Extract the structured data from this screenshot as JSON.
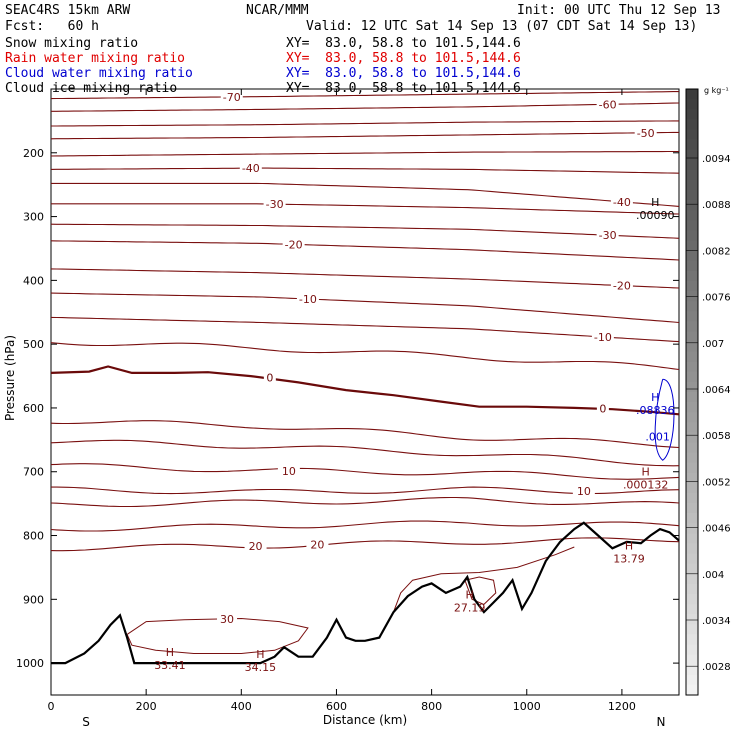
{
  "header": {
    "model": "SEAC4RS 15km ARW",
    "org": "NCAR/MMM",
    "init": "Init: 00 UTC Thu 12 Sep 13",
    "fcst": "Fcst:   60 h",
    "valid": "Valid: 12 UTC Sat 14 Sep 13 (07 CDT Sat 14 Sep 13)"
  },
  "fields": [
    {
      "label": "Snow mixing ratio",
      "xy": "XY=  83.0, 58.8 to 101.5,144.6",
      "color": "#000000"
    },
    {
      "label": "Rain water mixing ratio",
      "xy": "XY=  83.0, 58.8 to 101.5,144.6",
      "color": "#e00000"
    },
    {
      "label": "Cloud water mixing ratio",
      "xy": "XY=  83.0, 58.8 to 101.5,144.6",
      "color": "#0000d0"
    },
    {
      "label": "Cloud ice mixing ratio",
      "xy": "XY=  83.0, 58.8 to 101.5,144.6",
      "color": "#000000"
    }
  ],
  "chart_data": {
    "type": "cross-section",
    "xlabel": "Distance (km)",
    "ylabel": "Pressure (hPa)",
    "xlim": [
      0,
      1320
    ],
    "ylim": [
      1050,
      100
    ],
    "x_ticks": [
      0,
      200,
      400,
      600,
      800,
      1000,
      1200
    ],
    "y_ticks": [
      100,
      200,
      300,
      400,
      500,
      600,
      700,
      800,
      900,
      1000
    ],
    "y_tick_labels": [
      "",
      "200",
      "300",
      "400",
      "500",
      "600",
      "700",
      "800",
      "900",
      "1000"
    ],
    "endpoint_left": "S",
    "endpoint_right": "N",
    "colorbar": {
      "unit": "g kg⁻¹",
      "labels": [
        ".0094",
        ".0088",
        ".0082",
        ".0076",
        ".007",
        ".0064",
        ".0058",
        ".0052",
        ".0046",
        ".004",
        ".0034",
        ".0028"
      ],
      "top_color": "#3c3c3c",
      "bottom_color": "#f2f2f2"
    },
    "temperature_contours": {
      "color": "#7a1010",
      "lines": [
        {
          "p": [
            115,
            112,
            108,
            104
          ],
          "labels": [
            {
              "x": 380,
              "text": "-70"
            }
          ]
        },
        {
          "p": [
            135,
            132,
            128,
            122
          ],
          "labels": [
            {
              "x": 1170,
              "text": "-60"
            }
          ]
        },
        {
          "p": [
            158,
            156,
            152,
            150
          ],
          "labels": []
        },
        {
          "p": [
            178,
            176,
            172,
            168
          ],
          "labels": [
            {
              "x": 1250,
              "text": "-50"
            }
          ]
        },
        {
          "p": [
            205,
            202,
            199,
            198
          ],
          "labels": []
        },
        {
          "p": [
            226,
            224,
            226,
            232
          ],
          "labels": [
            {
              "x": 420,
              "text": "-40"
            }
          ]
        },
        {
          "p": [
            248,
            248,
            258,
            284
          ],
          "labels": [
            {
              "x": 1200,
              "text": "-40"
            }
          ]
        },
        {
          "p": [
            280,
            280,
            286,
            296
          ],
          "labels": [
            {
              "x": 470,
              "text": "-30"
            }
          ]
        },
        {
          "p": [
            312,
            314,
            320,
            334
          ],
          "labels": [
            {
              "x": 1170,
              "text": "-30"
            }
          ]
        },
        {
          "p": [
            338,
            342,
            352,
            368
          ],
          "labels": [
            {
              "x": 510,
              "text": "-20"
            }
          ]
        },
        {
          "p": [
            382,
            388,
            398,
            412
          ],
          "labels": [
            {
              "x": 1200,
              "text": "-20"
            }
          ]
        },
        {
          "p": [
            420,
            426,
            440,
            466
          ],
          "labels": [
            {
              "x": 540,
              "text": "-10"
            }
          ]
        },
        {
          "p": [
            458,
            466,
            476,
            496
          ],
          "labels": [
            {
              "x": 1160,
              "text": "-10"
            }
          ]
        },
        {
          "p": [
            496,
            506,
            520,
            538
          ],
          "labels": []
        },
        {
          "p": [
            620,
            628,
            646,
            658
          ],
          "labels": []
        },
        {
          "p": [
            652,
            660,
            672,
            688
          ],
          "labels": []
        },
        {
          "p": [
            690,
            698,
            702,
            710
          ],
          "labels": [
            {
              "x": 500,
              "text": "10"
            }
          ]
        },
        {
          "p": [
            728,
            732,
            728,
            732
          ],
          "labels": [
            {
              "x": 1120,
              "text": "10"
            }
          ]
        },
        {
          "p": [
            752,
            748,
            744,
            752
          ],
          "labels": []
        },
        {
          "p": [
            790,
            785,
            780,
            784
          ],
          "labels": []
        },
        {
          "p": [
            820,
            816,
            810,
            806
          ],
          "labels": [
            {
              "x": 430,
              "text": "20"
            },
            {
              "x": 560,
              "text": "20"
            }
          ]
        }
      ],
      "freezing_line": {
        "label": "0",
        "label_x_1": 460,
        "label_x_2": 1160
      }
    },
    "terrain": {
      "x": [
        0,
        30,
        70,
        100,
        125,
        145,
        160,
        175,
        200,
        240,
        300,
        360,
        400,
        440,
        470,
        490,
        520,
        550,
        580,
        600,
        620,
        640,
        660,
        690,
        720,
        750,
        780,
        800,
        830,
        860,
        875,
        890,
        910,
        930,
        950,
        970,
        990,
        1010,
        1040,
        1070,
        1100,
        1120,
        1150,
        1180,
        1210,
        1240,
        1260,
        1280,
        1300,
        1320
      ],
      "p": [
        1000,
        1000,
        985,
        965,
        940,
        925,
        960,
        1000,
        1000,
        1000,
        1000,
        1000,
        1000,
        1000,
        990,
        975,
        990,
        990,
        960,
        932,
        960,
        965,
        965,
        960,
        920,
        895,
        880,
        875,
        890,
        880,
        865,
        900,
        920,
        905,
        890,
        870,
        915,
        890,
        840,
        810,
        790,
        780,
        800,
        820,
        810,
        812,
        800,
        790,
        795,
        808
      ]
    },
    "rain_contours": {
      "color": "#7a1010",
      "label": "30",
      "label_x": 370
    },
    "maxima": [
      {
        "x": 250,
        "p": 995,
        "text": "33.41",
        "color": "#7a1010"
      },
      {
        "x": 440,
        "p": 998,
        "text": "34.15",
        "color": "#7a1010"
      },
      {
        "x": 880,
        "p": 905,
        "text": "27.19",
        "color": "#7a1010"
      },
      {
        "x": 1215,
        "p": 828,
        "text": "13.79",
        "color": "#7a1010"
      },
      {
        "x": 1250,
        "p": 712,
        "text": ".000132",
        "color": "#7a1010"
      },
      {
        "x": 1270,
        "p": 290,
        "text": ".00090",
        "color": "#000000"
      },
      {
        "x": 1270,
        "p": 595,
        "text": ".08836",
        "color": "#0000d0"
      }
    ],
    "cloud_water_contour": {
      "label": ".001",
      "color": "#0000d0"
    }
  }
}
